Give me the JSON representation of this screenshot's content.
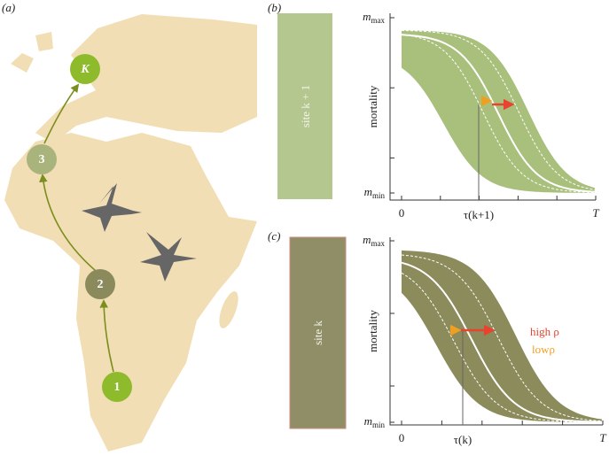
{
  "panels": [
    {
      "label": "(a)",
      "nodes": [
        "K",
        "3",
        "2",
        "1"
      ]
    },
    {
      "label": "(b)",
      "site": "site k + 1",
      "y_axis": "mortality",
      "y_max": {
        "base": "m",
        "sub": "max"
      },
      "y_min": {
        "base": "m",
        "sub": "min"
      },
      "x_start": "0",
      "x_end": "T",
      "x_marker": "τ(k+1)"
    },
    {
      "label": "(c)",
      "site": "site k",
      "y_axis": "mortality",
      "y_max": {
        "base": "m",
        "sub": "max"
      },
      "y_min": {
        "base": "m",
        "sub": "min"
      },
      "x_start": "0",
      "x_end": "T",
      "x_marker": "τ(k)",
      "legend": {
        "high": "high ρ",
        "low": "lowρ"
      }
    }
  ]
}
